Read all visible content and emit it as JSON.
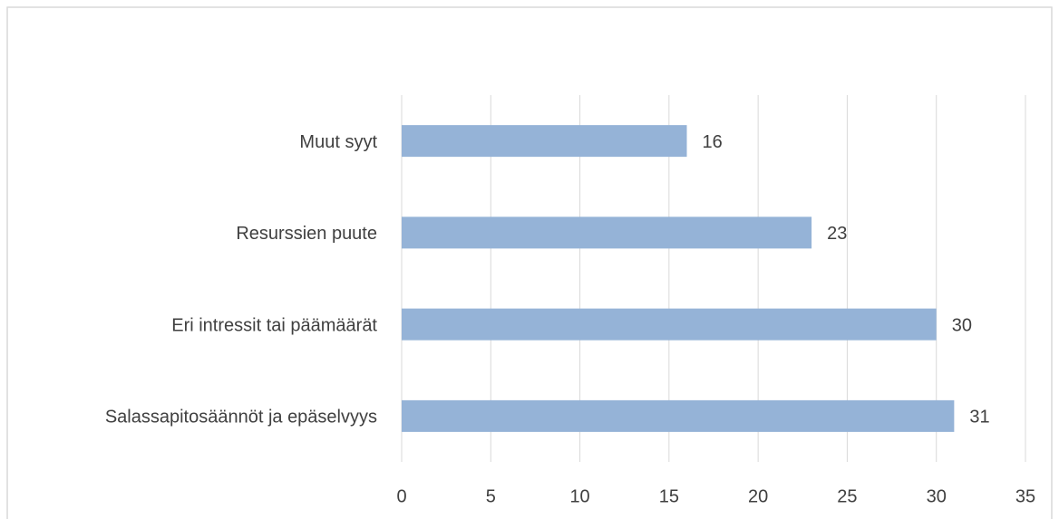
{
  "chart_data": {
    "type": "bar",
    "orientation": "horizontal",
    "categories": [
      "Muut syyt",
      "Resurssien puute",
      "Eri intressit tai päämäärät",
      "Salassapitosäännöt ja epäselvyys"
    ],
    "values": [
      16,
      23,
      30,
      31
    ],
    "color": "#95b3d7",
    "data_labels": true,
    "xlim": [
      0,
      35
    ],
    "xticks": [
      0,
      5,
      10,
      15,
      20,
      25,
      30,
      35
    ],
    "grid": true
  }
}
